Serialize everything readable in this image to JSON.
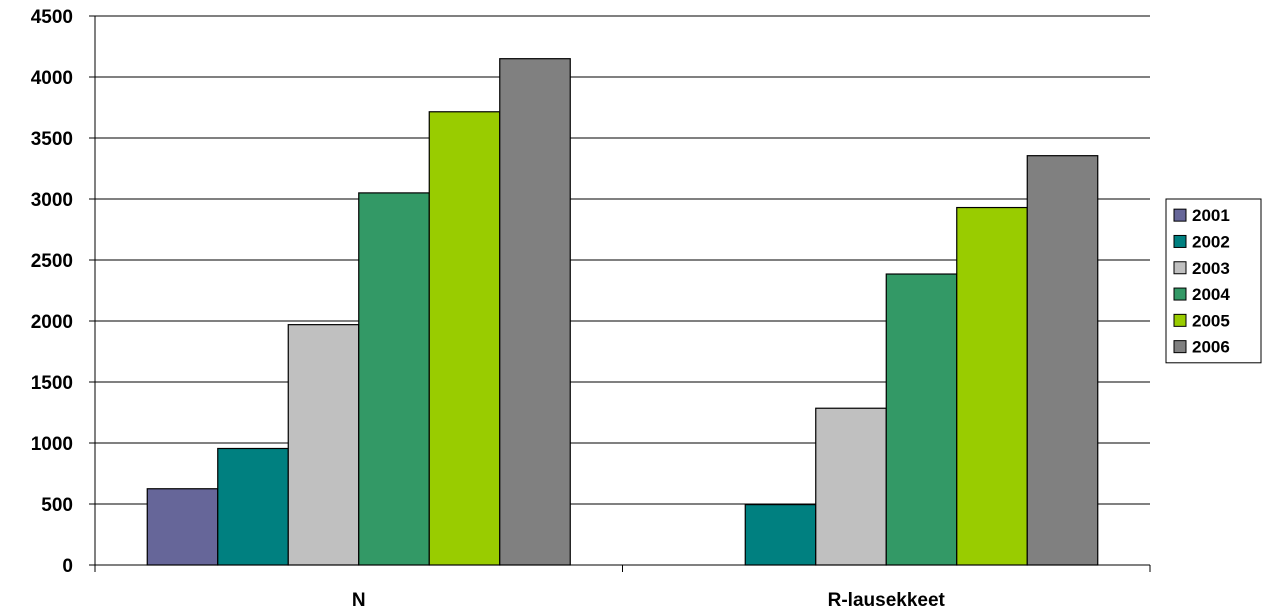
{
  "chart_data": {
    "type": "bar",
    "title": "",
    "xlabel": "",
    "ylabel": "",
    "categories": [
      "N",
      "R-lausekkeet"
    ],
    "ylim": [
      0,
      4500
    ],
    "yticks": [
      "0",
      "500",
      "1000",
      "1500",
      "2000",
      "2500",
      "3000",
      "3500",
      "4000",
      "4500"
    ],
    "grid": true,
    "legend_position": "right",
    "series": [
      {
        "name": "2001",
        "color": "#666699",
        "values": [
          625,
          0
        ]
      },
      {
        "name": "2002",
        "color": "#008080",
        "values": [
          955,
          495
        ]
      },
      {
        "name": "2003",
        "color": "#c0c0c0",
        "values": [
          1970,
          1285
        ]
      },
      {
        "name": "2004",
        "color": "#339966",
        "values": [
          3050,
          2385
        ]
      },
      {
        "name": "2005",
        "color": "#99cc00",
        "values": [
          3715,
          2930
        ]
      },
      {
        "name": "2006",
        "color": "#808080",
        "values": [
          4150,
          3355
        ]
      }
    ]
  }
}
